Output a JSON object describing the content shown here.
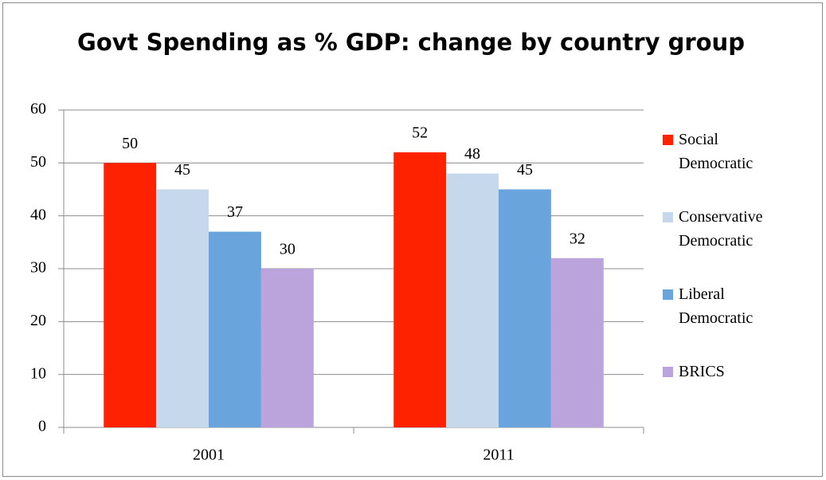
{
  "chart_data": {
    "type": "bar",
    "title": "Govt Spending as % GDP: change by country group",
    "categories": [
      "2001",
      "2011"
    ],
    "series": [
      {
        "name": "Social Democratic",
        "color": "#ff2200",
        "values": [
          50,
          52
        ]
      },
      {
        "name": "Conservative Democratic",
        "color": "#c6d8eb",
        "values": [
          45,
          48
        ]
      },
      {
        "name": "Liberal Democratic",
        "color": "#6aa4dc",
        "values": [
          37,
          45
        ]
      },
      {
        "name": "BRICS",
        "color": "#bba3dc",
        "values": [
          30,
          32
        ]
      }
    ],
    "ylim": [
      0,
      60
    ],
    "yticks": [
      0,
      10,
      20,
      30,
      40,
      50,
      60
    ],
    "grid": true,
    "legend": "right"
  }
}
